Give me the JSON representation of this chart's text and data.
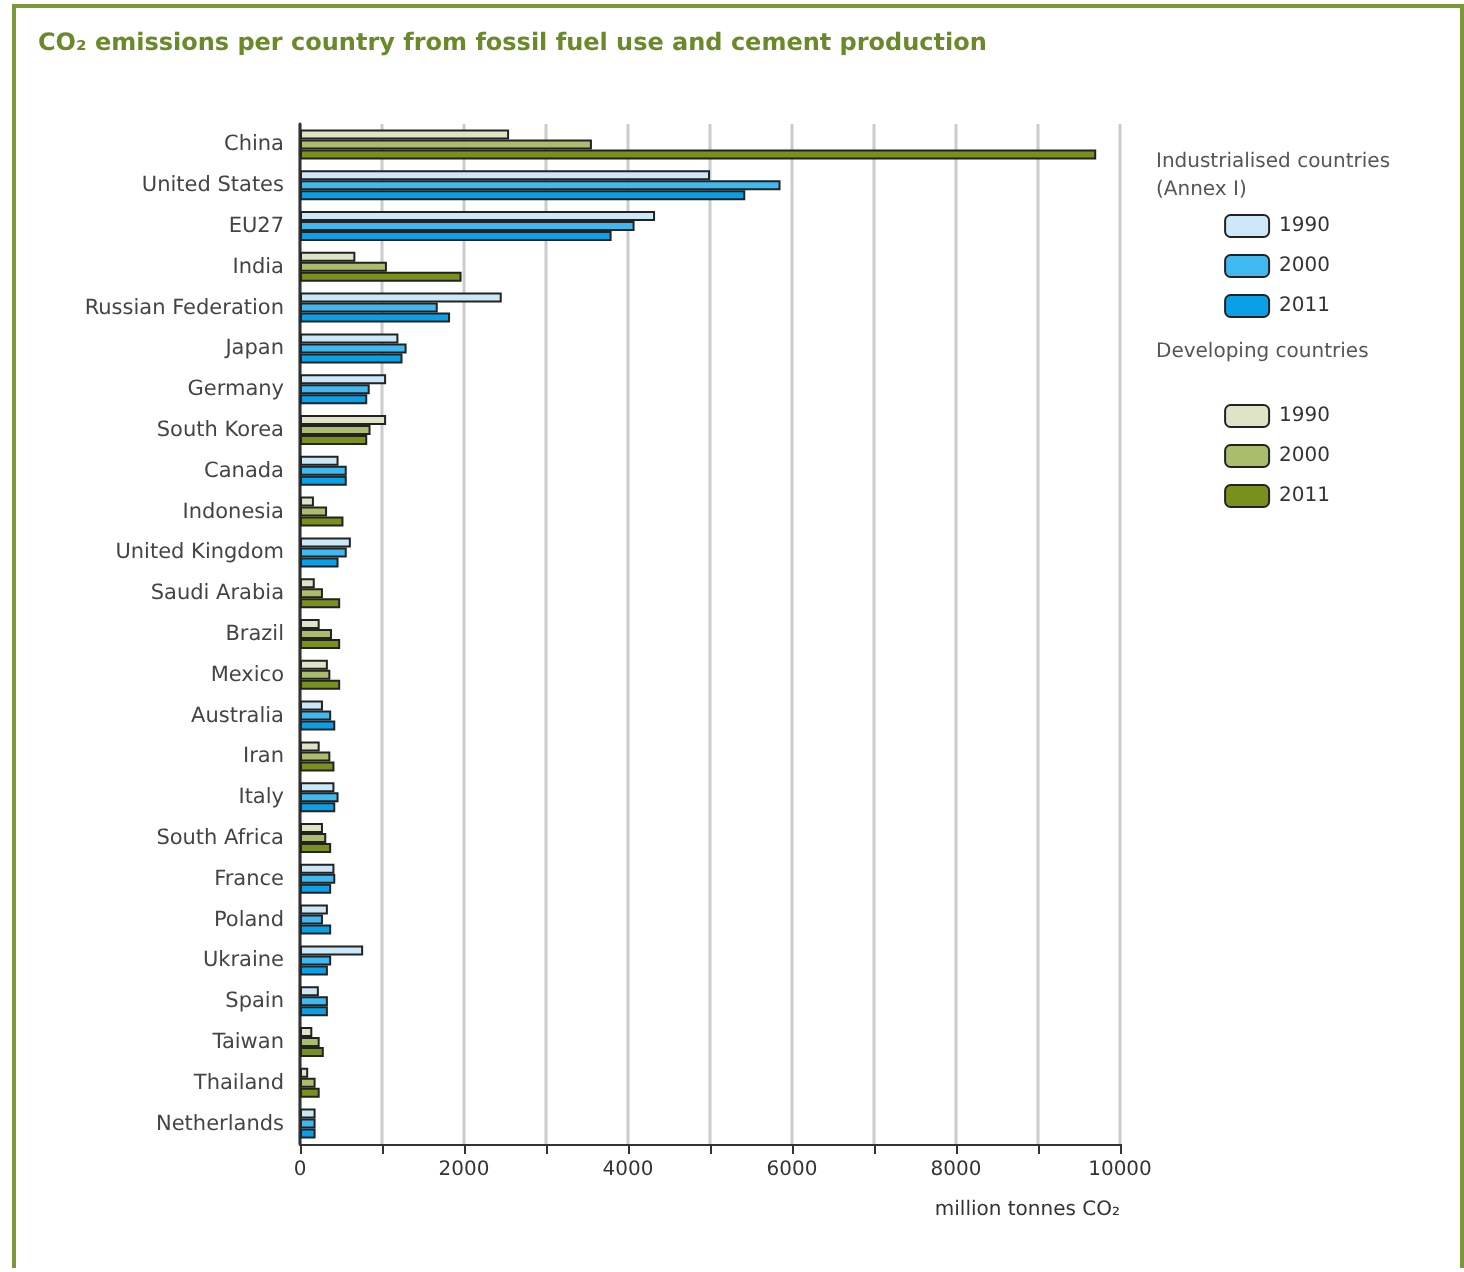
{
  "chart_data": {
    "type": "bar",
    "orientation": "horizontal",
    "title": "CO₂ emissions per country from fossil fuel use and cement production",
    "xlabel": "million tonnes CO₂",
    "categories": [
      "China",
      "United States",
      "EU27",
      "India",
      "Russian Federation",
      "Japan",
      "Germany",
      "South Korea",
      "Canada",
      "Indonesia",
      "United Kingdom",
      "Saudi Arabia",
      "Brazil",
      "Mexico",
      "Australia",
      "Iran",
      "Italy",
      "South Africa",
      "France",
      "Poland",
      "Ukraine",
      "Spain",
      "Taiwan",
      "Thailand",
      "Netherlands"
    ],
    "series": [
      {
        "name": "1990",
        "color": "#cce8f8",
        "values": [
          null,
          5000,
          4330,
          null,
          2460,
          1200,
          1050,
          null,
          470,
          null,
          620,
          null,
          null,
          null,
          280,
          null,
          420,
          null,
          420,
          340,
          770,
          230,
          null,
          null,
          190
        ]
      },
      {
        "name": "2000",
        "color": "#40b8f0",
        "values": [
          null,
          5860,
          4080,
          null,
          1680,
          1300,
          850,
          null,
          570,
          null,
          570,
          null,
          null,
          null,
          380,
          null,
          470,
          null,
          430,
          280,
          380,
          340,
          null,
          null,
          190
        ]
      },
      {
        "name": "2011",
        "color": "#0aa0e8",
        "values": [
          null,
          5430,
          3800,
          null,
          1830,
          1250,
          820,
          null,
          570,
          null,
          470,
          null,
          null,
          null,
          430,
          null,
          430,
          null,
          380,
          380,
          340,
          340,
          null,
          null,
          190
        ]
      },
      {
        "name": "1990",
        "color": "#dfe4c6",
        "values": [
          2550,
          null,
          null,
          675,
          null,
          null,
          null,
          1050,
          null,
          170,
          null,
          180,
          240,
          340,
          null,
          240,
          null,
          280,
          null,
          null,
          null,
          null,
          150,
          100,
          null
        ]
      },
      {
        "name": "2000",
        "color": "#a9bd6c",
        "values": [
          3560,
          null,
          null,
          1060,
          null,
          null,
          null,
          860,
          null,
          330,
          null,
          280,
          390,
          370,
          null,
          370,
          null,
          320,
          null,
          null,
          null,
          null,
          240,
          190,
          null
        ]
      },
      {
        "name": "2011",
        "color": "#78901e",
        "values": [
          9710,
          null,
          null,
          1970,
          null,
          null,
          null,
          820,
          null,
          530,
          null,
          490,
          490,
          490,
          null,
          420,
          null,
          380,
          null,
          null,
          null,
          null,
          290,
          240,
          null
        ]
      }
    ],
    "xlim": [
      0,
      10000
    ],
    "xticks": [
      0,
      {
        "value": 1000,
        "label": null
      },
      2000,
      {
        "value": 3000,
        "label": null
      },
      4000,
      {
        "value": 5000,
        "label": null
      },
      6000,
      {
        "value": 7000,
        "label": null
      },
      8000,
      {
        "value": 9000,
        "label": null
      },
      10000
    ],
    "grid": "x",
    "legend": "right",
    "annotations": [
      "Industrialised countries (Annex I)",
      "Developing countries"
    ]
  }
}
